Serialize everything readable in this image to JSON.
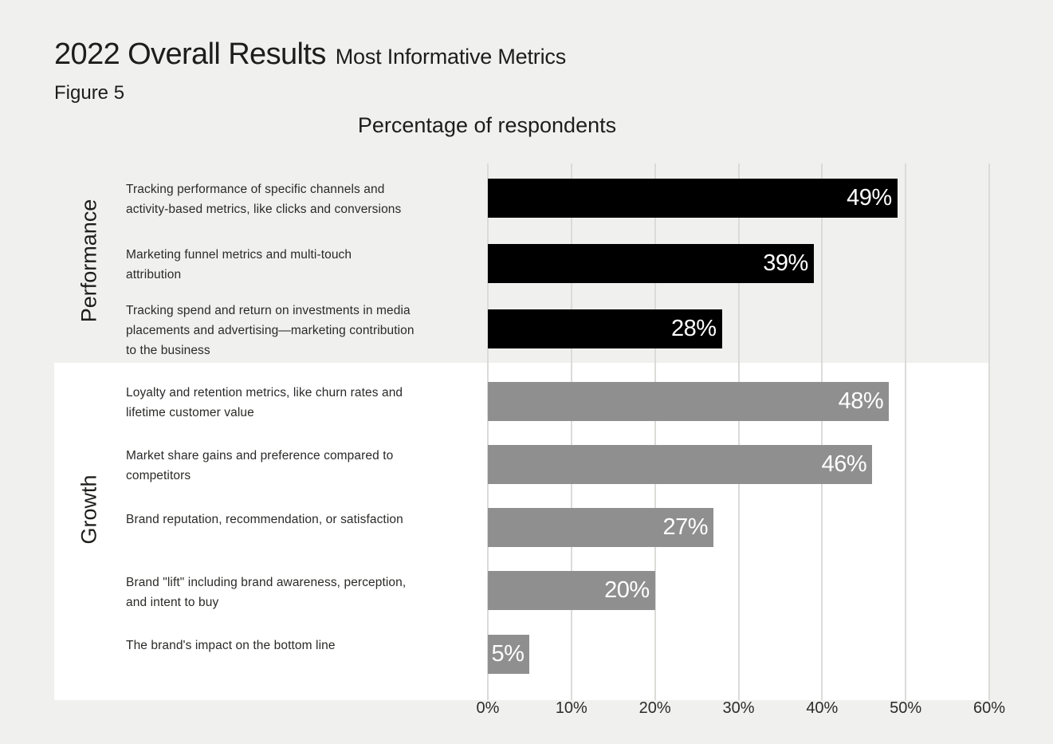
{
  "header": {
    "title": "2022 Overall Results",
    "subtitle": "Most Informative Metrics",
    "figure_label": "Figure 5"
  },
  "colors": {
    "background": "#f0f0ee",
    "growth_section_band": "#ffffff",
    "performance_bar": "#000000",
    "growth_bar": "#8f8f8f",
    "gridline": "#dbdbd9",
    "value_label_text": "#ffffff",
    "text": "#1d1d1b"
  },
  "chart_data": {
    "type": "bar",
    "orientation": "horizontal",
    "title": "Percentage of respondents",
    "xlabel": "",
    "ylabel": "",
    "xlim": [
      0,
      60
    ],
    "x_tick_labels": [
      "0%",
      "10%",
      "20%",
      "30%",
      "40%",
      "50%",
      "60%"
    ],
    "grid": true,
    "value_label_format": "{value}%",
    "groups": [
      {
        "name": "Performance",
        "bar_color": "#000000",
        "items": [
          {
            "label": "Tracking performance of specific channels and activity-based metrics, like clicks and conversions",
            "label_lines": [
              "Tracking performance of specific channels and",
              "activity-based metrics, like clicks and conversions"
            ],
            "value": 49
          },
          {
            "label": "Marketing funnel metrics and multi-touch attribution",
            "label_lines": [
              "Marketing funnel metrics and multi-touch",
              "attribution"
            ],
            "value": 39
          },
          {
            "label": "Tracking spend and return on investments in media placements and advertising—marketing contribution to the business",
            "label_lines": [
              "Tracking spend and return on investments in media",
              "placements and advertising—marketing contribution",
              "to the business"
            ],
            "value": 28
          }
        ]
      },
      {
        "name": "Growth",
        "bar_color": "#8f8f8f",
        "items": [
          {
            "label": "Loyalty and retention metrics, like churn rates and lifetime customer value",
            "label_lines": [
              "Loyalty and retention metrics, like churn rates and",
              "lifetime customer value"
            ],
            "value": 48
          },
          {
            "label": "Market share gains and preference compared to competitors",
            "label_lines": [
              "Market share gains and preference compared to",
              "competitors"
            ],
            "value": 46
          },
          {
            "label": "Brand reputation, recommendation, or satisfaction",
            "label_lines": [
              "Brand reputation, recommendation, or satisfaction"
            ],
            "value": 27
          },
          {
            "label": "Brand \"lift\" including brand awareness, perception, and intent to buy",
            "label_lines": [
              "Brand \"lift\" including brand awareness, perception,",
              "and intent to buy"
            ],
            "value": 20
          },
          {
            "label": "The brand's impact on the bottom line",
            "label_lines": [
              "The brand's impact on the bottom line"
            ],
            "value": 5
          }
        ]
      }
    ]
  }
}
